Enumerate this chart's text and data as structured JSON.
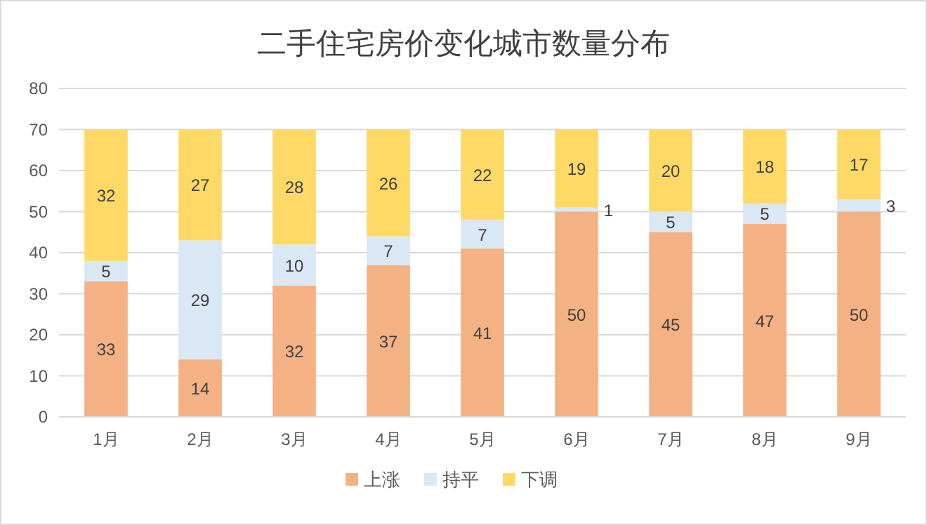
{
  "chart_data": {
    "type": "bar",
    "title": "二手住宅房价变化城市数量分布",
    "categories": [
      "1月",
      "2月",
      "3月",
      "4月",
      "5月",
      "6月",
      "7月",
      "8月",
      "9月"
    ],
    "series": [
      {
        "name": "上涨",
        "color": "#f4b183",
        "values": [
          33,
          14,
          32,
          37,
          41,
          50,
          45,
          47,
          50
        ]
      },
      {
        "name": "持平",
        "color": "#dae8f5",
        "values": [
          5,
          29,
          10,
          7,
          7,
          1,
          5,
          5,
          3
        ]
      },
      {
        "name": "下调",
        "color": "#ffd966",
        "values": [
          32,
          27,
          28,
          26,
          22,
          19,
          20,
          18,
          17
        ]
      }
    ],
    "stacked": true,
    "ylim": [
      0,
      80
    ],
    "yticks": [
      0,
      10,
      20,
      30,
      40,
      50,
      60,
      70,
      80
    ],
    "grid": "y",
    "legend": "bottom",
    "data_labels": true
  }
}
